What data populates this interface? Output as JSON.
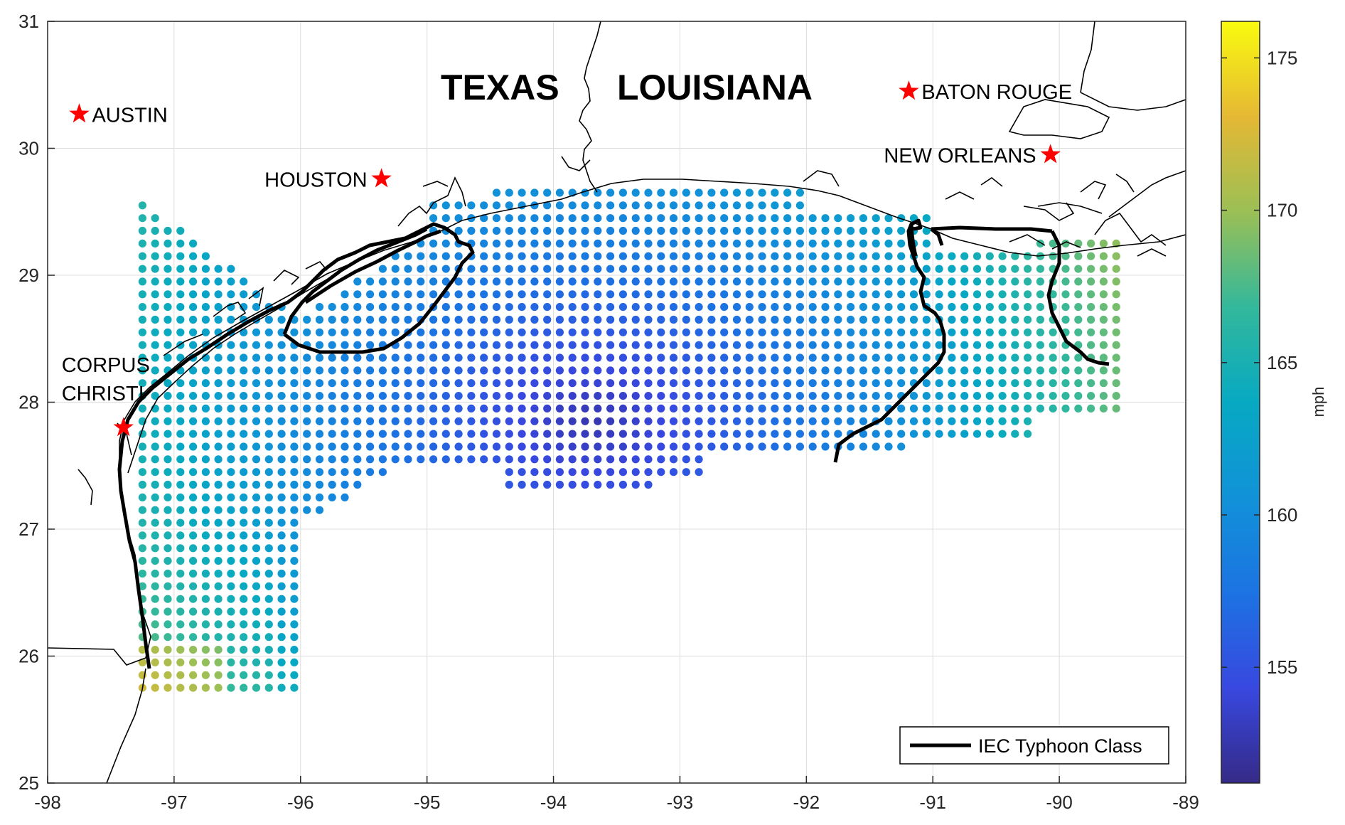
{
  "map": {
    "x_ticks": [
      "-98",
      "-97",
      "-96",
      "-95",
      "-94",
      "-93",
      "-92",
      "-91",
      "-90",
      "-89"
    ],
    "y_ticks": [
      "25",
      "26",
      "27",
      "28",
      "29",
      "30",
      "31"
    ],
    "lon_range": [
      -98,
      -89
    ],
    "lat_range": [
      25,
      31
    ],
    "grid": true,
    "states": [
      {
        "label": "TEXAS",
        "lon": -95.8,
        "lat": 30.45
      },
      {
        "label": "LOUISIANA",
        "lon": -92.8,
        "lat": 30.45
      }
    ],
    "cities": [
      {
        "label": "AUSTIN",
        "lon": -97.75,
        "lat": 30.27,
        "label_side": "right"
      },
      {
        "label": "HOUSTON",
        "lon": -95.36,
        "lat": 29.76,
        "label_side": "left"
      },
      {
        "label": "BATON ROUGE",
        "lon": -91.19,
        "lat": 30.45,
        "label_side": "right"
      },
      {
        "label": "NEW ORLEANS",
        "lon": -90.07,
        "lat": 29.95,
        "label_side": "left"
      },
      {
        "label_line1": "CORPUS",
        "label_line2": "CHRISTI",
        "lon": -97.4,
        "lat": 27.8,
        "label_side": "above"
      }
    ],
    "marker": "red-star-icon",
    "marker_color": "#ff0000",
    "legend": {
      "label": "IEC Typhoon Class",
      "placement": "bottom-right"
    }
  },
  "colorbar": {
    "label": "mph",
    "ticks": [
      "155",
      "160",
      "165",
      "170",
      "175"
    ],
    "range": [
      151.2,
      176.2
    ],
    "colormap": "parula"
  },
  "chart_data": {
    "type": "scatter",
    "description": "gridded wind speed points (mph) over the northern Gulf of Mexico, colored by value",
    "xlabel": "",
    "ylabel": "",
    "xlim": [
      -98,
      -89
    ],
    "ylim": [
      25,
      31
    ],
    "color_unit": "mph",
    "color_range": [
      151.2,
      176.2
    ]
  }
}
